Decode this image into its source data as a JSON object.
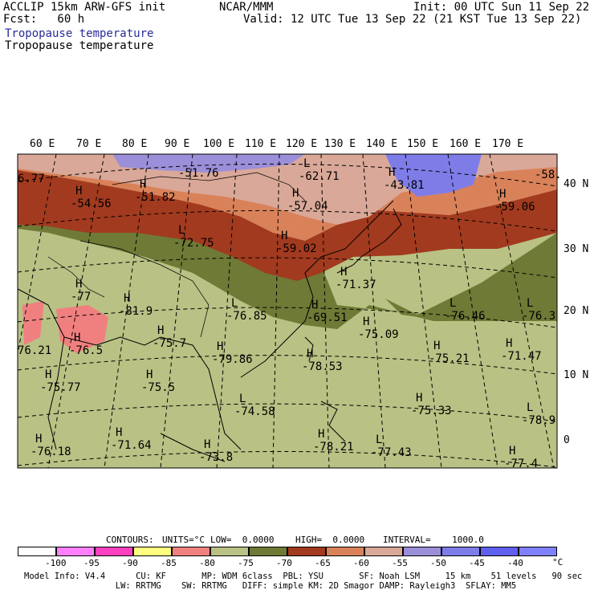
{
  "header": {
    "left1": "ACCLIP 15km ARW-GFS init",
    "left2": "Fcst:   60 h",
    "center": "NCAR/MMM",
    "init": "Init: 00 UTC Sun 11 Sep 22",
    "valid": "Valid: 12 UTC Tue 13 Sep 22 (21 KST Tue 13 Sep 22)",
    "field_label_1": "Tropopause temperature",
    "field_label_2": "Tropopause temperature"
  },
  "map": {
    "lon_labels": [
      "60 E",
      "70 E",
      "80 E",
      "90 E",
      "100 E",
      "110 E",
      "120 E",
      "130 E",
      "140 E",
      "150 E",
      "160 E",
      "170 E"
    ],
    "lat_labels": [
      "40 N",
      "30 N",
      "20 N",
      "10 N",
      "0"
    ],
    "colors": {
      "olive_light": "#b9c184",
      "olive_dark": "#6e7a35",
      "brown": "#a23a1f",
      "orange": "#d9825a",
      "pink": "#d9a898",
      "lavender": "#9c8fd9",
      "blue": "#7e7de8",
      "salmon": "#f08080"
    },
    "extrema": [
      {
        "mark": "",
        "value": "6.77"
      },
      {
        "mark": "",
        "value": "-51.76"
      },
      {
        "mark": "L",
        "value": "-62.71"
      },
      {
        "mark": "H",
        "value": "-43.81"
      },
      {
        "mark": "",
        "value": "-58."
      },
      {
        "mark": "H",
        "value": "-54.56"
      },
      {
        "mark": "H",
        "value": "-51.82"
      },
      {
        "mark": "H",
        "value": "-57.04"
      },
      {
        "mark": "H",
        "value": "-59.06"
      },
      {
        "mark": "L",
        "value": "-72.75"
      },
      {
        "mark": "H",
        "value": "-59.02"
      },
      {
        "mark": "H",
        "value": "-71.37"
      },
      {
        "mark": "H",
        "value": "-77"
      },
      {
        "mark": "H",
        "value": "-81.9"
      },
      {
        "mark": "L",
        "value": "-76.85"
      },
      {
        "mark": "H",
        "value": "-69.51"
      },
      {
        "mark": "L",
        "value": "-76.46"
      },
      {
        "mark": "L",
        "value": "-76.3"
      },
      {
        "mark": "",
        "value": "76.21"
      },
      {
        "mark": "H",
        "value": "-75.7"
      },
      {
        "mark": "H",
        "value": "-75.09"
      },
      {
        "mark": "H",
        "value": "-76.5"
      },
      {
        "mark": "H",
        "value": "-79.86"
      },
      {
        "mark": "H",
        "value": "-78.53"
      },
      {
        "mark": "H",
        "value": "-75.21"
      },
      {
        "mark": "H",
        "value": "-71.47"
      },
      {
        "mark": "H",
        "value": "-75.5"
      },
      {
        "mark": "H",
        "value": "-75.77"
      },
      {
        "mark": "L",
        "value": "-74.58"
      },
      {
        "mark": "H",
        "value": "-75.33"
      },
      {
        "mark": "L",
        "value": "-78.9"
      },
      {
        "mark": "H",
        "value": "-71.64"
      },
      {
        "mark": "H",
        "value": "-73.8"
      },
      {
        "mark": "H",
        "value": "-78.21"
      },
      {
        "mark": "L",
        "value": "-77.43"
      },
      {
        "mark": "H",
        "value": "-76.18"
      },
      {
        "mark": "H",
        "value": "-77.4"
      }
    ]
  },
  "contours_line": {
    "contours": "CONTOURS:",
    "units": "UNITS=°C",
    "low": "LOW=  0.0000",
    "high": "HIGH=  0.0000",
    "interval": "INTERVAL=    1000.0"
  },
  "colorbar": {
    "colors": [
      "#ffffff",
      "#ff80ff",
      "#ff40c0",
      "#ffff80",
      "#f08080",
      "#b9c184",
      "#6e7a35",
      "#a23a1f",
      "#d9825a",
      "#d9a898",
      "#9c8fd9",
      "#7e7de8",
      "#6060f0",
      "#8080ff"
    ],
    "labels": [
      "-100",
      "-95",
      "-90",
      "-85",
      "-80",
      "-75",
      "-70",
      "-65",
      "-60",
      "-55",
      "-50",
      "-45",
      "-40"
    ],
    "unit": "°C"
  },
  "footer": {
    "line1": "Model Info: V4.4      CU: KF       MP: WDM 6class  PBL: YSU       SF: Noah LSM     15 km    51 levels   90 sec",
    "line2": "                  LW: RRTMG    SW: RRTMG   DIFF: simple KM: 2D Smagor DAMP: Rayleigh3  SFLAY: MM5"
  }
}
